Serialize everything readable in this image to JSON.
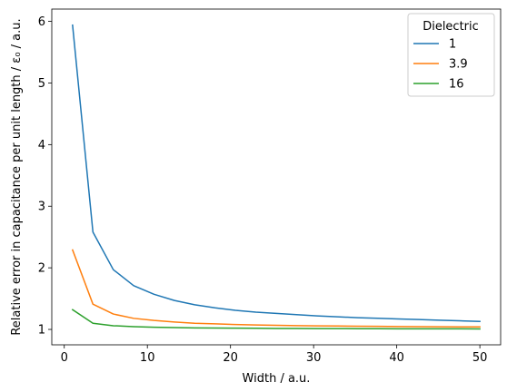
{
  "chart_data": {
    "type": "line",
    "xlabel": "Width / a.u.",
    "ylabel": "Relative error in capacitance per unit length / ε₀ / a.u.",
    "xlim": [
      -1.5,
      52.5
    ],
    "ylim": [
      0.75,
      6.2
    ],
    "xticks": [
      0,
      10,
      20,
      30,
      40,
      50
    ],
    "yticks": [
      1,
      2,
      3,
      4,
      5,
      6
    ],
    "grid": false,
    "legend": {
      "title": "Dielectric",
      "placement": "top-right"
    },
    "x": [
      1,
      3.45,
      5.9,
      8.35,
      10.8,
      13.25,
      15.7,
      18.15,
      20.6,
      23.05,
      25.5,
      27.95,
      30.4,
      32.85,
      35.3,
      37.75,
      40.2,
      42.65,
      45.1,
      47.55,
      50
    ],
    "series": [
      {
        "name": "1",
        "color": "#1f77b4",
        "values": [
          5.94,
          2.58,
          1.97,
          1.71,
          1.57,
          1.47,
          1.4,
          1.35,
          1.31,
          1.28,
          1.26,
          1.24,
          1.22,
          1.205,
          1.19,
          1.18,
          1.17,
          1.16,
          1.15,
          1.14,
          1.13
        ]
      },
      {
        "name": "3.9",
        "color": "#ff7f0e",
        "values": [
          2.29,
          1.41,
          1.25,
          1.18,
          1.145,
          1.12,
          1.1,
          1.09,
          1.08,
          1.073,
          1.067,
          1.062,
          1.058,
          1.055,
          1.052,
          1.05,
          1.047,
          1.045,
          1.043,
          1.041,
          1.04
        ]
      },
      {
        "name": "16",
        "color": "#2ca02c",
        "values": [
          1.32,
          1.1,
          1.06,
          1.045,
          1.035,
          1.03,
          1.025,
          1.022,
          1.02,
          1.018,
          1.016,
          1.015,
          1.014,
          1.013,
          1.012,
          1.011,
          1.01,
          1.01,
          1.009,
          1.009,
          1.008
        ]
      }
    ]
  }
}
